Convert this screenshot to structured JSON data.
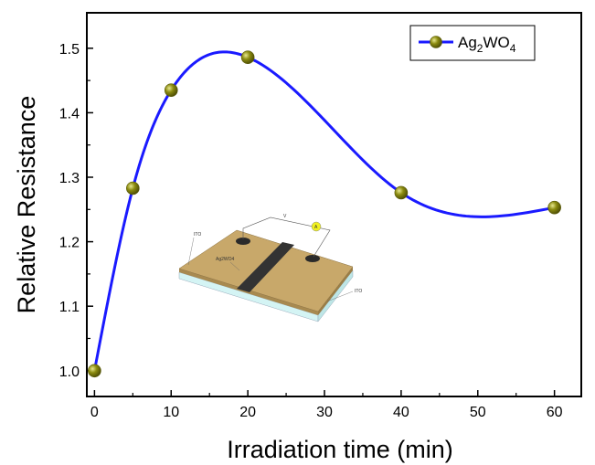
{
  "chart_data": {
    "type": "line",
    "title": "",
    "xlabel": "Irradiation time (min)",
    "ylabel": "Relative Resistance",
    "xlim": [
      -1,
      63.5
    ],
    "ylim": [
      0.96,
      1.555
    ],
    "xticks": [
      0,
      10,
      20,
      30,
      40,
      50,
      60
    ],
    "yticks": [
      1.0,
      1.1,
      1.2,
      1.3,
      1.4,
      1.5
    ],
    "xtick_labels": [
      "0",
      "10",
      "20",
      "30",
      "40",
      "50",
      "60"
    ],
    "ytick_labels": [
      "1.0",
      "1.1",
      "1.2",
      "1.3",
      "1.4",
      "1.5"
    ],
    "grid": false,
    "legend_position": "top-right",
    "series": [
      {
        "name_main": "Ag",
        "name_sub1": "2",
        "name_mid": "WO",
        "name_sub2": "4",
        "x": [
          0,
          5,
          10,
          20,
          40,
          60
        ],
        "y": [
          1.0,
          1.283,
          1.435,
          1.486,
          1.276,
          1.253
        ],
        "line_color": "#1a1aff",
        "marker_color": "#8b8b10",
        "marker_highlight": "#e8e890",
        "smooth": true
      }
    ]
  },
  "inset": {
    "label_ito_left": "ITO",
    "label_ito_right": "ITO",
    "label_film": "Ag2WO4",
    "label_voltage": "V",
    "label_ammeter": "A",
    "colors": {
      "substrate_top": "#c8a86a",
      "substrate_side": "#a88a50",
      "glass": "#d4f4f4",
      "strip": "#333333",
      "electrode": "#2a2a2a",
      "ammeter": "#f0f020"
    }
  }
}
